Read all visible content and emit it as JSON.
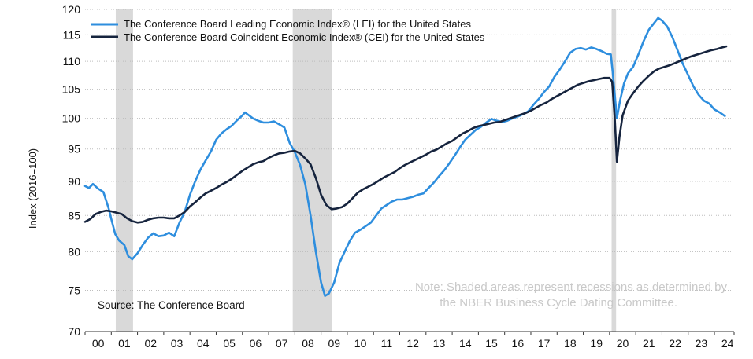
{
  "chart_data": {
    "type": "line",
    "title": "",
    "xlabel": "",
    "ylabel": "Index (2016=100)",
    "y_scale": "log",
    "ylim": [
      70,
      120
    ],
    "xlim": [
      2000.0,
      2024.75
    ],
    "y_ticks": [
      70,
      75,
      80,
      85,
      90,
      95,
      100,
      105,
      110,
      115,
      120
    ],
    "x_tick_labels": [
      "00",
      "01",
      "02",
      "03",
      "04",
      "05",
      "06",
      "07",
      "08",
      "09",
      "10",
      "11",
      "12",
      "13",
      "14",
      "15",
      "16",
      "17",
      "18",
      "19",
      "20",
      "21",
      "22",
      "23",
      "24"
    ],
    "recessions": [
      [
        2001.17,
        2001.83
      ],
      [
        2007.92,
        2009.42
      ],
      [
        2020.08,
        2020.25
      ]
    ],
    "series": [
      {
        "name": "The Conference Board Leading Economic Index® (LEI) for the United States",
        "color": "#2e8ede",
        "points": [
          [
            2000.0,
            89.3
          ],
          [
            2000.15,
            89.0
          ],
          [
            2000.3,
            89.6
          ],
          [
            2000.5,
            88.9
          ],
          [
            2000.7,
            88.4
          ],
          [
            2000.9,
            86.0
          ],
          [
            2001.0,
            84.5
          ],
          [
            2001.15,
            82.4
          ],
          [
            2001.3,
            81.5
          ],
          [
            2001.5,
            80.9
          ],
          [
            2001.65,
            79.4
          ],
          [
            2001.8,
            79.0
          ],
          [
            2002.0,
            79.8
          ],
          [
            2002.2,
            80.9
          ],
          [
            2002.4,
            81.9
          ],
          [
            2002.6,
            82.5
          ],
          [
            2002.8,
            82.1
          ],
          [
            2003.0,
            82.2
          ],
          [
            2003.2,
            82.6
          ],
          [
            2003.4,
            82.1
          ],
          [
            2003.6,
            84.0
          ],
          [
            2003.8,
            85.5
          ],
          [
            2004.0,
            88.0
          ],
          [
            2004.2,
            90.0
          ],
          [
            2004.4,
            91.8
          ],
          [
            2004.6,
            93.2
          ],
          [
            2004.8,
            94.6
          ],
          [
            2005.0,
            96.5
          ],
          [
            2005.2,
            97.5
          ],
          [
            2005.4,
            98.2
          ],
          [
            2005.6,
            98.8
          ],
          [
            2005.8,
            99.7
          ],
          [
            2006.0,
            100.5
          ],
          [
            2006.1,
            101.0
          ],
          [
            2006.25,
            100.5
          ],
          [
            2006.4,
            100.0
          ],
          [
            2006.6,
            99.6
          ],
          [
            2006.8,
            99.3
          ],
          [
            2007.0,
            99.3
          ],
          [
            2007.2,
            99.5
          ],
          [
            2007.4,
            99.0
          ],
          [
            2007.6,
            98.5
          ],
          [
            2007.8,
            96.0
          ],
          [
            2008.0,
            94.5
          ],
          [
            2008.2,
            92.5
          ],
          [
            2008.4,
            89.5
          ],
          [
            2008.6,
            85.0
          ],
          [
            2008.8,
            80.0
          ],
          [
            2009.0,
            76.0
          ],
          [
            2009.15,
            74.3
          ],
          [
            2009.3,
            74.6
          ],
          [
            2009.5,
            76.0
          ],
          [
            2009.7,
            78.5
          ],
          [
            2009.9,
            80.0
          ],
          [
            2010.1,
            81.5
          ],
          [
            2010.3,
            82.6
          ],
          [
            2010.5,
            83.0
          ],
          [
            2010.7,
            83.5
          ],
          [
            2010.9,
            84.0
          ],
          [
            2011.1,
            85.0
          ],
          [
            2011.3,
            86.0
          ],
          [
            2011.5,
            86.5
          ],
          [
            2011.7,
            87.0
          ],
          [
            2011.9,
            87.3
          ],
          [
            2012.1,
            87.3
          ],
          [
            2012.3,
            87.5
          ],
          [
            2012.5,
            87.7
          ],
          [
            2012.7,
            88.0
          ],
          [
            2012.9,
            88.2
          ],
          [
            2013.1,
            89.0
          ],
          [
            2013.3,
            89.8
          ],
          [
            2013.5,
            90.8
          ],
          [
            2013.7,
            91.7
          ],
          [
            2013.9,
            92.8
          ],
          [
            2014.1,
            94.0
          ],
          [
            2014.3,
            95.3
          ],
          [
            2014.5,
            96.5
          ],
          [
            2014.7,
            97.3
          ],
          [
            2014.9,
            98.1
          ],
          [
            2015.1,
            98.6
          ],
          [
            2015.3,
            99.3
          ],
          [
            2015.5,
            99.9
          ],
          [
            2015.7,
            99.6
          ],
          [
            2015.9,
            99.4
          ],
          [
            2016.1,
            99.6
          ],
          [
            2016.3,
            100.0
          ],
          [
            2016.5,
            100.3
          ],
          [
            2016.7,
            100.7
          ],
          [
            2016.9,
            101.2
          ],
          [
            2017.1,
            102.3
          ],
          [
            2017.3,
            103.3
          ],
          [
            2017.5,
            104.5
          ],
          [
            2017.7,
            105.5
          ],
          [
            2017.9,
            107.2
          ],
          [
            2018.1,
            108.5
          ],
          [
            2018.3,
            110.0
          ],
          [
            2018.5,
            111.6
          ],
          [
            2018.7,
            112.3
          ],
          [
            2018.9,
            112.5
          ],
          [
            2019.1,
            112.2
          ],
          [
            2019.3,
            112.6
          ],
          [
            2019.5,
            112.3
          ],
          [
            2019.7,
            111.9
          ],
          [
            2019.9,
            111.4
          ],
          [
            2020.05,
            111.3
          ],
          [
            2020.12,
            108.0
          ],
          [
            2020.2,
            104.0
          ],
          [
            2020.28,
            100.0
          ],
          [
            2020.4,
            103.0
          ],
          [
            2020.55,
            106.0
          ],
          [
            2020.7,
            107.8
          ],
          [
            2020.9,
            109.0
          ],
          [
            2021.1,
            111.3
          ],
          [
            2021.3,
            113.8
          ],
          [
            2021.5,
            116.0
          ],
          [
            2021.7,
            117.3
          ],
          [
            2021.85,
            118.3
          ],
          [
            2022.0,
            117.8
          ],
          [
            2022.2,
            116.6
          ],
          [
            2022.4,
            114.5
          ],
          [
            2022.6,
            112.0
          ],
          [
            2022.8,
            109.5
          ],
          [
            2023.0,
            107.5
          ],
          [
            2023.2,
            105.5
          ],
          [
            2023.4,
            104.0
          ],
          [
            2023.6,
            103.0
          ],
          [
            2023.8,
            102.5
          ],
          [
            2024.0,
            101.5
          ],
          [
            2024.2,
            101.0
          ],
          [
            2024.4,
            100.4
          ]
        ]
      },
      {
        "name": "The Conference Board Coincident Economic Index® (CEI) for the United States",
        "color": "#16243e",
        "points": [
          [
            2000.0,
            84.1
          ],
          [
            2000.2,
            84.5
          ],
          [
            2000.4,
            85.2
          ],
          [
            2000.6,
            85.5
          ],
          [
            2000.8,
            85.7
          ],
          [
            2001.0,
            85.6
          ],
          [
            2001.2,
            85.4
          ],
          [
            2001.4,
            85.2
          ],
          [
            2001.6,
            84.6
          ],
          [
            2001.8,
            84.2
          ],
          [
            2002.0,
            84.0
          ],
          [
            2002.2,
            84.1
          ],
          [
            2002.4,
            84.4
          ],
          [
            2002.6,
            84.6
          ],
          [
            2002.8,
            84.7
          ],
          [
            2003.0,
            84.7
          ],
          [
            2003.2,
            84.6
          ],
          [
            2003.4,
            84.6
          ],
          [
            2003.6,
            85.0
          ],
          [
            2003.8,
            85.5
          ],
          [
            2004.0,
            86.3
          ],
          [
            2004.2,
            86.9
          ],
          [
            2004.4,
            87.6
          ],
          [
            2004.6,
            88.2
          ],
          [
            2004.8,
            88.6
          ],
          [
            2005.0,
            89.0
          ],
          [
            2005.2,
            89.5
          ],
          [
            2005.4,
            89.9
          ],
          [
            2005.6,
            90.4
          ],
          [
            2005.8,
            91.0
          ],
          [
            2006.0,
            91.6
          ],
          [
            2006.2,
            92.1
          ],
          [
            2006.4,
            92.6
          ],
          [
            2006.6,
            92.9
          ],
          [
            2006.8,
            93.1
          ],
          [
            2007.0,
            93.6
          ],
          [
            2007.2,
            94.0
          ],
          [
            2007.4,
            94.3
          ],
          [
            2007.6,
            94.4
          ],
          [
            2007.8,
            94.6
          ],
          [
            2008.0,
            94.7
          ],
          [
            2008.2,
            94.3
          ],
          [
            2008.4,
            93.5
          ],
          [
            2008.6,
            92.6
          ],
          [
            2008.8,
            90.5
          ],
          [
            2009.0,
            88.0
          ],
          [
            2009.2,
            86.5
          ],
          [
            2009.4,
            85.9
          ],
          [
            2009.6,
            86.0
          ],
          [
            2009.8,
            86.2
          ],
          [
            2010.0,
            86.7
          ],
          [
            2010.2,
            87.5
          ],
          [
            2010.4,
            88.3
          ],
          [
            2010.6,
            88.8
          ],
          [
            2010.8,
            89.2
          ],
          [
            2011.0,
            89.6
          ],
          [
            2011.2,
            90.1
          ],
          [
            2011.4,
            90.6
          ],
          [
            2011.6,
            91.0
          ],
          [
            2011.8,
            91.4
          ],
          [
            2012.0,
            92.0
          ],
          [
            2012.2,
            92.5
          ],
          [
            2012.4,
            92.9
          ],
          [
            2012.6,
            93.3
          ],
          [
            2012.8,
            93.7
          ],
          [
            2013.0,
            94.1
          ],
          [
            2013.2,
            94.6
          ],
          [
            2013.4,
            94.9
          ],
          [
            2013.6,
            95.4
          ],
          [
            2013.8,
            95.9
          ],
          [
            2014.0,
            96.3
          ],
          [
            2014.2,
            96.9
          ],
          [
            2014.4,
            97.5
          ],
          [
            2014.6,
            97.9
          ],
          [
            2014.8,
            98.4
          ],
          [
            2015.0,
            98.7
          ],
          [
            2015.2,
            98.9
          ],
          [
            2015.4,
            99.1
          ],
          [
            2015.6,
            99.3
          ],
          [
            2015.8,
            99.4
          ],
          [
            2016.0,
            99.7
          ],
          [
            2016.2,
            100.0
          ],
          [
            2016.4,
            100.3
          ],
          [
            2016.6,
            100.6
          ],
          [
            2016.8,
            100.9
          ],
          [
            2017.0,
            101.3
          ],
          [
            2017.2,
            101.8
          ],
          [
            2017.4,
            102.3
          ],
          [
            2017.6,
            102.7
          ],
          [
            2017.8,
            103.3
          ],
          [
            2018.0,
            103.8
          ],
          [
            2018.2,
            104.3
          ],
          [
            2018.4,
            104.8
          ],
          [
            2018.6,
            105.3
          ],
          [
            2018.8,
            105.8
          ],
          [
            2019.0,
            106.1
          ],
          [
            2019.2,
            106.4
          ],
          [
            2019.4,
            106.6
          ],
          [
            2019.6,
            106.8
          ],
          [
            2019.8,
            107.0
          ],
          [
            2020.0,
            107.0
          ],
          [
            2020.1,
            106.3
          ],
          [
            2020.2,
            100.0
          ],
          [
            2020.28,
            93.0
          ],
          [
            2020.38,
            97.0
          ],
          [
            2020.5,
            100.5
          ],
          [
            2020.7,
            103.0
          ],
          [
            2020.9,
            104.3
          ],
          [
            2021.1,
            105.5
          ],
          [
            2021.3,
            106.5
          ],
          [
            2021.5,
            107.4
          ],
          [
            2021.7,
            108.2
          ],
          [
            2021.9,
            108.7
          ],
          [
            2022.1,
            109.0
          ],
          [
            2022.3,
            109.3
          ],
          [
            2022.5,
            109.7
          ],
          [
            2022.7,
            110.1
          ],
          [
            2022.9,
            110.5
          ],
          [
            2023.1,
            110.9
          ],
          [
            2023.3,
            111.2
          ],
          [
            2023.5,
            111.5
          ],
          [
            2023.7,
            111.8
          ],
          [
            2023.9,
            112.1
          ],
          [
            2024.1,
            112.3
          ],
          [
            2024.3,
            112.6
          ],
          [
            2024.45,
            112.8
          ]
        ]
      }
    ],
    "legend": {
      "placement": "top-left",
      "entries": [
        "The Conference Board Leading Economic Index® (LEI) for the United States",
        "The Conference Board Coincident Economic Index® (CEI) for the United States"
      ]
    },
    "source": "Source: The Conference Board",
    "note_line1": "Note: Shaded areas represent recessions as determined by",
    "note_line2": "the NBER Business Cycle Dating Committee.",
    "colors": {
      "recession_shade": "#d9d9d9",
      "grid": "#bdbdbd",
      "axis": "#333333"
    }
  }
}
